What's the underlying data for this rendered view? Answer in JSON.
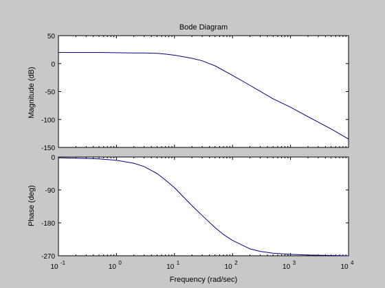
{
  "figure": {
    "background": "#c8c8c8",
    "axes_color": "#ffffff",
    "line_color": "#000080"
  },
  "chart_data": {
    "type": "line",
    "title": "Bode Diagram",
    "xlabel": "Frequency  (rad/sec)",
    "x_scale": "log",
    "xlim": [
      0.1,
      10000
    ],
    "x_ticks": [
      0.1,
      1,
      10,
      100,
      1000,
      10000
    ],
    "x_tick_labels": [
      {
        "base": "10",
        "exp": "-1"
      },
      {
        "base": "10",
        "exp": "0"
      },
      {
        "base": "10",
        "exp": "1"
      },
      {
        "base": "10",
        "exp": "2"
      },
      {
        "base": "10",
        "exp": "3"
      },
      {
        "base": "10",
        "exp": "4"
      }
    ],
    "subplots": [
      {
        "ylabel": "Magnitude (dB)",
        "ylim": [
          -150,
          50
        ],
        "y_ticks": [
          50,
          0,
          -50,
          -100,
          -150
        ],
        "y_tick_labels": [
          "50",
          "0",
          "-50",
          "-100",
          "-150"
        ],
        "x": [
          0.1,
          0.5,
          1,
          2,
          3,
          5,
          7,
          10,
          20,
          30,
          50,
          100,
          200,
          500,
          1000,
          2000,
          5000,
          10000
        ],
        "y": [
          20,
          20,
          19.5,
          19,
          19,
          18.5,
          17,
          15,
          9.5,
          5,
          -4,
          -21,
          -39,
          -63,
          -78,
          -95,
          -117,
          -135
        ]
      },
      {
        "ylabel": "Phase (deg)",
        "ylim": [
          -270,
          0
        ],
        "y_ticks": [
          0,
          -90,
          -180,
          -270
        ],
        "y_tick_labels": [
          "0",
          "-90",
          "-180",
          "-270"
        ],
        "x": [
          0.1,
          0.3,
          0.5,
          1,
          2,
          3,
          5,
          7,
          10,
          20,
          30,
          50,
          70,
          100,
          200,
          300,
          500,
          1000,
          2000,
          5000,
          10000
        ],
        "y": [
          -2,
          -4,
          -5,
          -9,
          -17,
          -26,
          -45,
          -63,
          -84,
          -133,
          -160,
          -193,
          -212,
          -228,
          -251,
          -258,
          -263,
          -266,
          -268,
          -269,
          -270
        ]
      }
    ]
  }
}
